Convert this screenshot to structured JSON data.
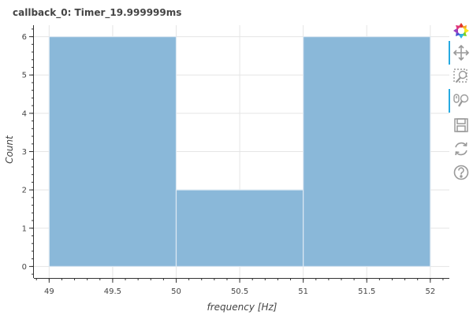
{
  "chart_data": {
    "type": "bar",
    "title": "callback_0: Timer_19.999999ms",
    "xlabel": "frequency [Hz]",
    "ylabel": "Count",
    "bins": [
      {
        "left": 49.0,
        "right": 50.0,
        "count": 6
      },
      {
        "left": 50.0,
        "right": 51.0,
        "count": 2
      },
      {
        "left": 51.0,
        "right": 52.0,
        "count": 6
      }
    ],
    "xlim": [
      48.88,
      52.15
    ],
    "ylim": [
      -0.3,
      6.3
    ],
    "x_ticks": [
      "49",
      "49.5",
      "50",
      "50.5",
      "51",
      "51.5",
      "52"
    ],
    "y_ticks": [
      "0",
      "1",
      "2",
      "3",
      "4",
      "5",
      "6"
    ],
    "grid": true,
    "bar_color": "#8ab8d9",
    "bar_edge_color": "#dce8f2"
  },
  "toolbar": {
    "tools": [
      {
        "name": "bokeh-logo-icon",
        "active": false
      },
      {
        "name": "pan-icon",
        "active": true
      },
      {
        "name": "box-zoom-icon",
        "active": false
      },
      {
        "name": "wheel-zoom-icon",
        "active": true
      },
      {
        "name": "save-icon",
        "active": false
      },
      {
        "name": "reset-icon",
        "active": false
      },
      {
        "name": "help-icon",
        "active": false
      }
    ]
  }
}
